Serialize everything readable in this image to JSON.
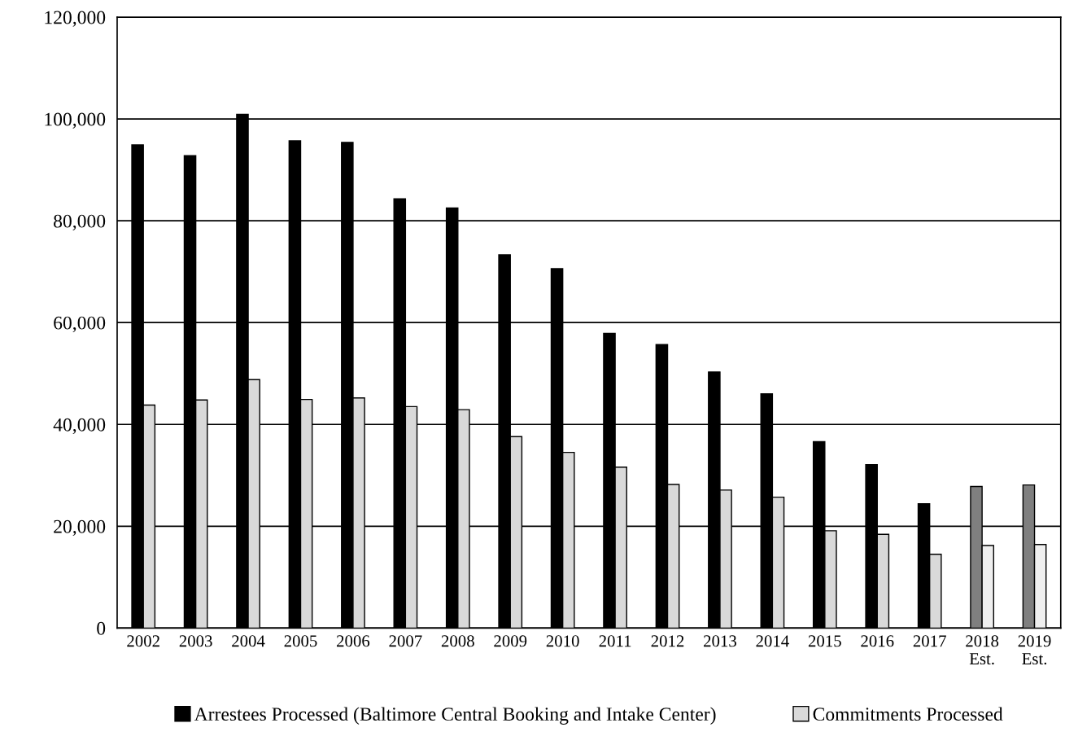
{
  "chart_data": {
    "type": "bar",
    "categories": [
      "2002",
      "2003",
      "2004",
      "2005",
      "2006",
      "2007",
      "2008",
      "2009",
      "2010",
      "2011",
      "2012",
      "2013",
      "2014",
      "2015",
      "2016",
      "2017",
      "2018\nEst.",
      "2019\nEst."
    ],
    "series": [
      {
        "name": "Arrestees Processed (Baltimore Central Booking and Intake Center)",
        "color": "#000000",
        "colors": [
          "#000000",
          "#000000",
          "#000000",
          "#000000",
          "#000000",
          "#000000",
          "#000000",
          "#000000",
          "#000000",
          "#000000",
          "#000000",
          "#000000",
          "#000000",
          "#000000",
          "#000000",
          "#000000",
          "#7f7f7f",
          "#7f7f7f"
        ],
        "values": [
          94900,
          92800,
          100900,
          95700,
          95400,
          84300,
          82500,
          73300,
          70600,
          57900,
          55700,
          50300,
          46000,
          36600,
          32100,
          24400,
          27800,
          28100
        ]
      },
      {
        "name": "Commitments Processed",
        "color": "#d9d9d9",
        "colors": [
          "#d9d9d9",
          "#d9d9d9",
          "#d9d9d9",
          "#d9d9d9",
          "#d9d9d9",
          "#d9d9d9",
          "#d9d9d9",
          "#d9d9d9",
          "#d9d9d9",
          "#d9d9d9",
          "#d9d9d9",
          "#d9d9d9",
          "#d9d9d9",
          "#d9d9d9",
          "#d9d9d9",
          "#d9d9d9",
          "#efefef",
          "#efefef"
        ],
        "values": [
          43800,
          44800,
          48800,
          44900,
          45200,
          43500,
          42900,
          37600,
          34500,
          31600,
          28200,
          27100,
          25700,
          19100,
          18400,
          14500,
          16200,
          16400
        ]
      }
    ],
    "ylim": [
      0,
      120000
    ],
    "yticks": [
      0,
      {
        "value": 20000,
        "label": "20,000"
      },
      {
        "value": 40000,
        "label": "40,000"
      },
      {
        "value": 60000,
        "label": "60,000"
      },
      {
        "value": 80000,
        "label": "80,000"
      },
      {
        "value": 100000,
        "label": "100,000"
      },
      {
        "value": 120000,
        "label": "120,000"
      }
    ],
    "grid": "y",
    "legend": "bottom"
  }
}
